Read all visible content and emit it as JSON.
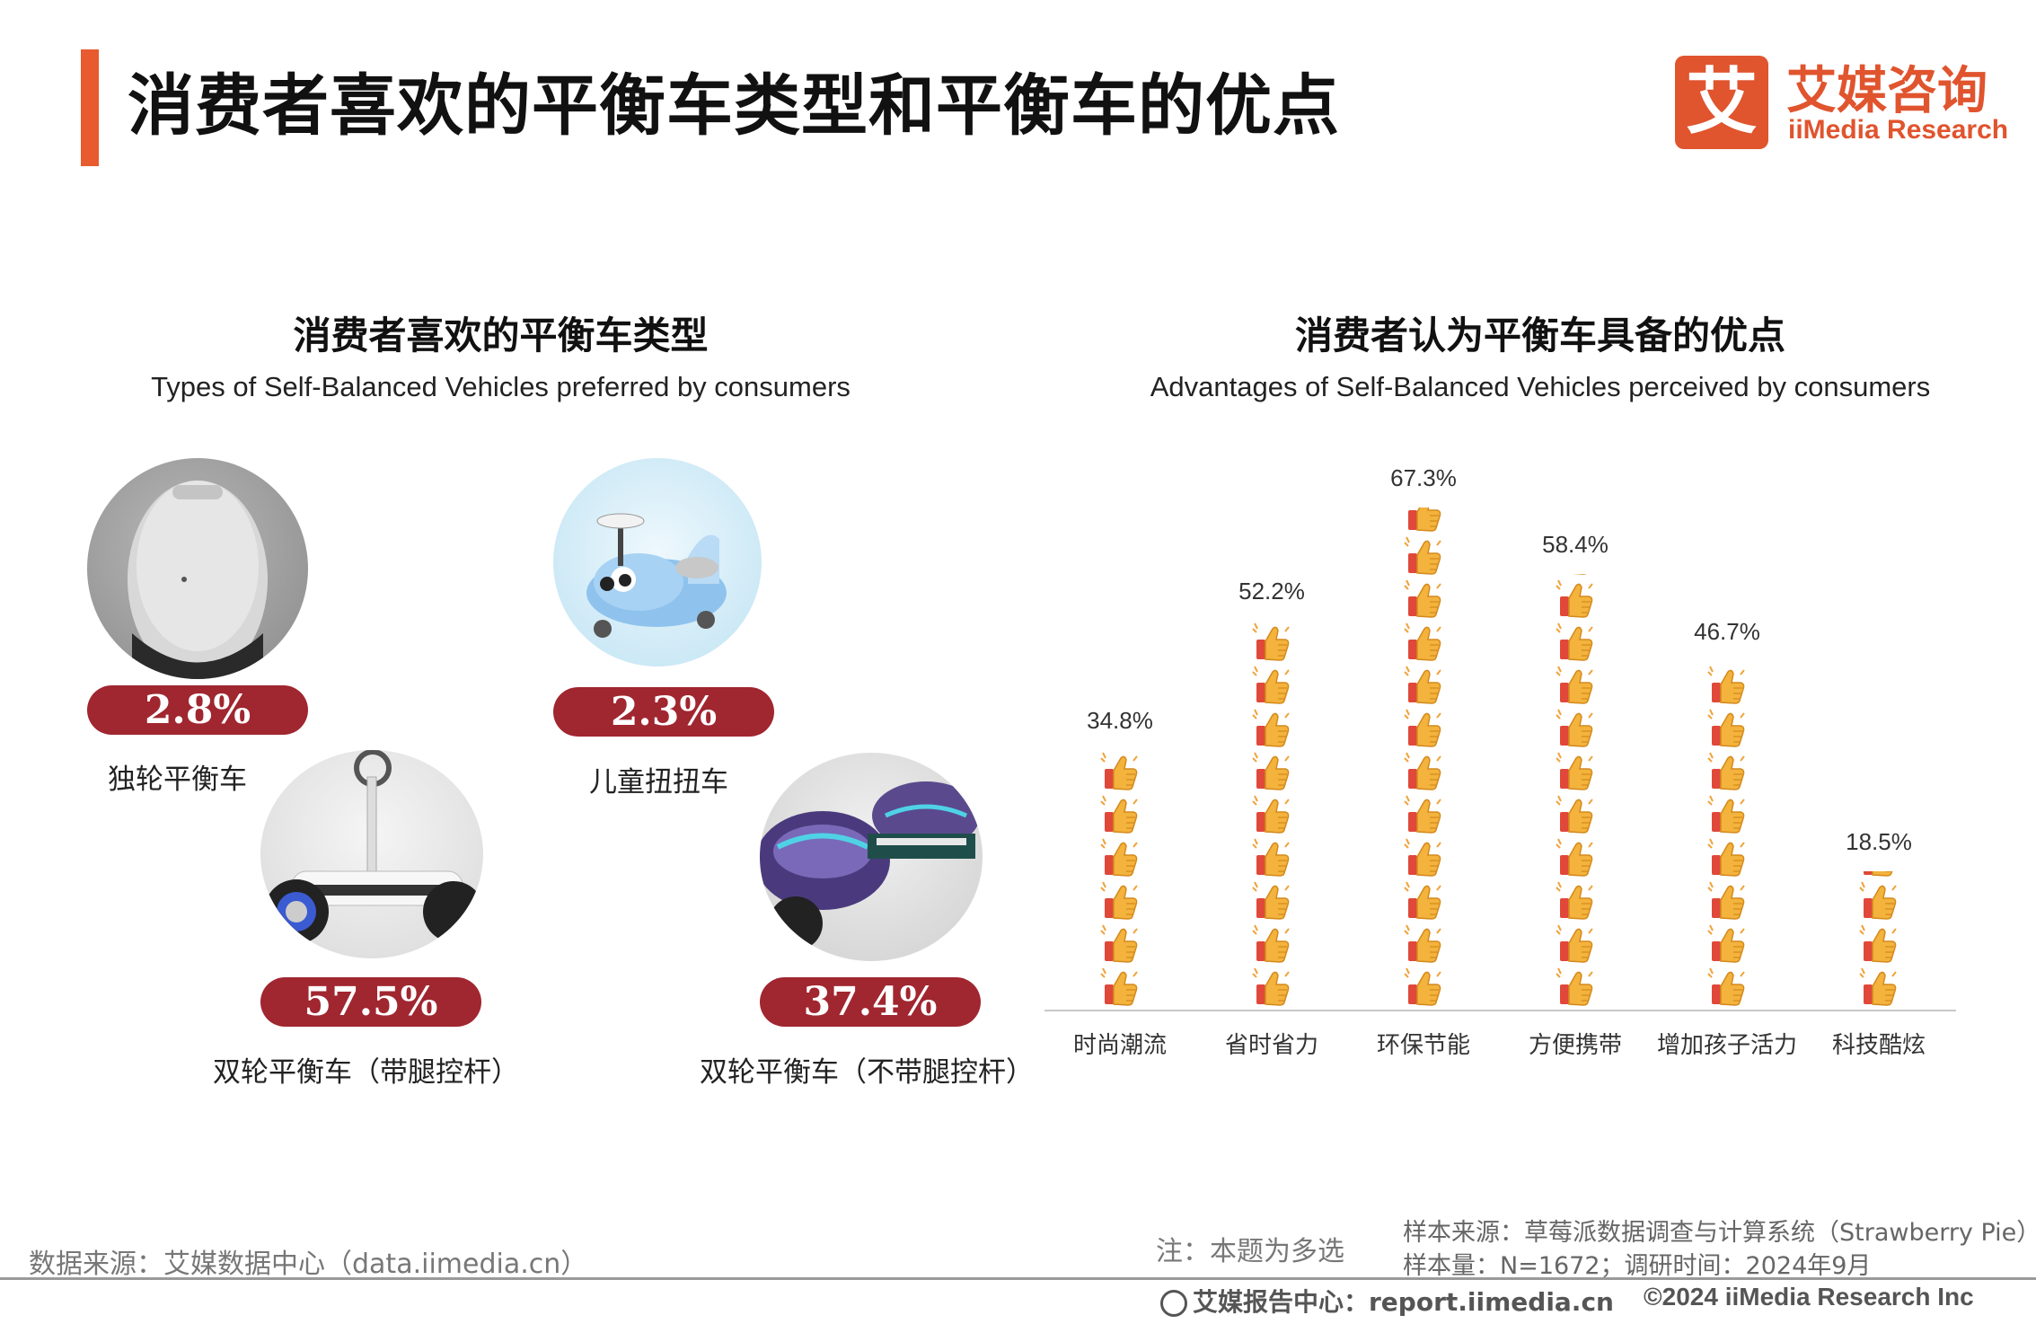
{
  "header": {
    "title": "消费者喜欢的平衡车类型和平衡车的优点",
    "logo_cn": "艾媒咨询",
    "logo_en": "iiMedia Research",
    "logo_mark": "艾"
  },
  "left_section": {
    "title": "消费者喜欢的平衡车类型",
    "subtitle": "Types of Self-Balanced Vehicles preferred by consumers",
    "types": [
      {
        "value": "2.8%",
        "label": "独轮平衡车"
      },
      {
        "value": "2.3%",
        "label": "儿童扭扭车"
      },
      {
        "value": "57.5%",
        "label": "双轮平衡车（带腿控杆）"
      },
      {
        "value": "37.4%",
        "label": "双轮平衡车（不带腿控杆）"
      }
    ]
  },
  "right_section": {
    "title": "消费者认为平衡车具备的优点",
    "subtitle": "Advantages of Self-Balanced Vehicles perceived by consumers"
  },
  "chart_data": {
    "type": "bar",
    "categories": [
      "时尚潮流",
      "省时省力",
      "环保节能",
      "方便携带",
      "增加孩子活力",
      "科技酷炫"
    ],
    "values": [
      34.8,
      52.2,
      67.3,
      58.4,
      46.7,
      18.5
    ],
    "value_labels": [
      "34.8%",
      "52.2%",
      "67.3%",
      "58.4%",
      "46.7%",
      "18.5%"
    ],
    "unit": "%",
    "ylim": [
      0,
      70
    ],
    "grid": false,
    "bar_style": "stacked thumbs-up icons"
  },
  "footer": {
    "source": "数据来源：艾媒数据中心（data.iimedia.cn）",
    "note": "注：本题为多选",
    "sample_source": "样本来源：草莓派数据调查与计算系统（Strawberry Pie）",
    "sample_size": "样本量：N=1672；调研时间：2024年9月",
    "report_center": "艾媒报告中心：report.iimedia.cn",
    "copyright": "©2024  iiMedia Research  Inc"
  },
  "colors": {
    "accent": "#e85b2f",
    "pill": "#a02630",
    "thumb": "#f3b33d"
  }
}
